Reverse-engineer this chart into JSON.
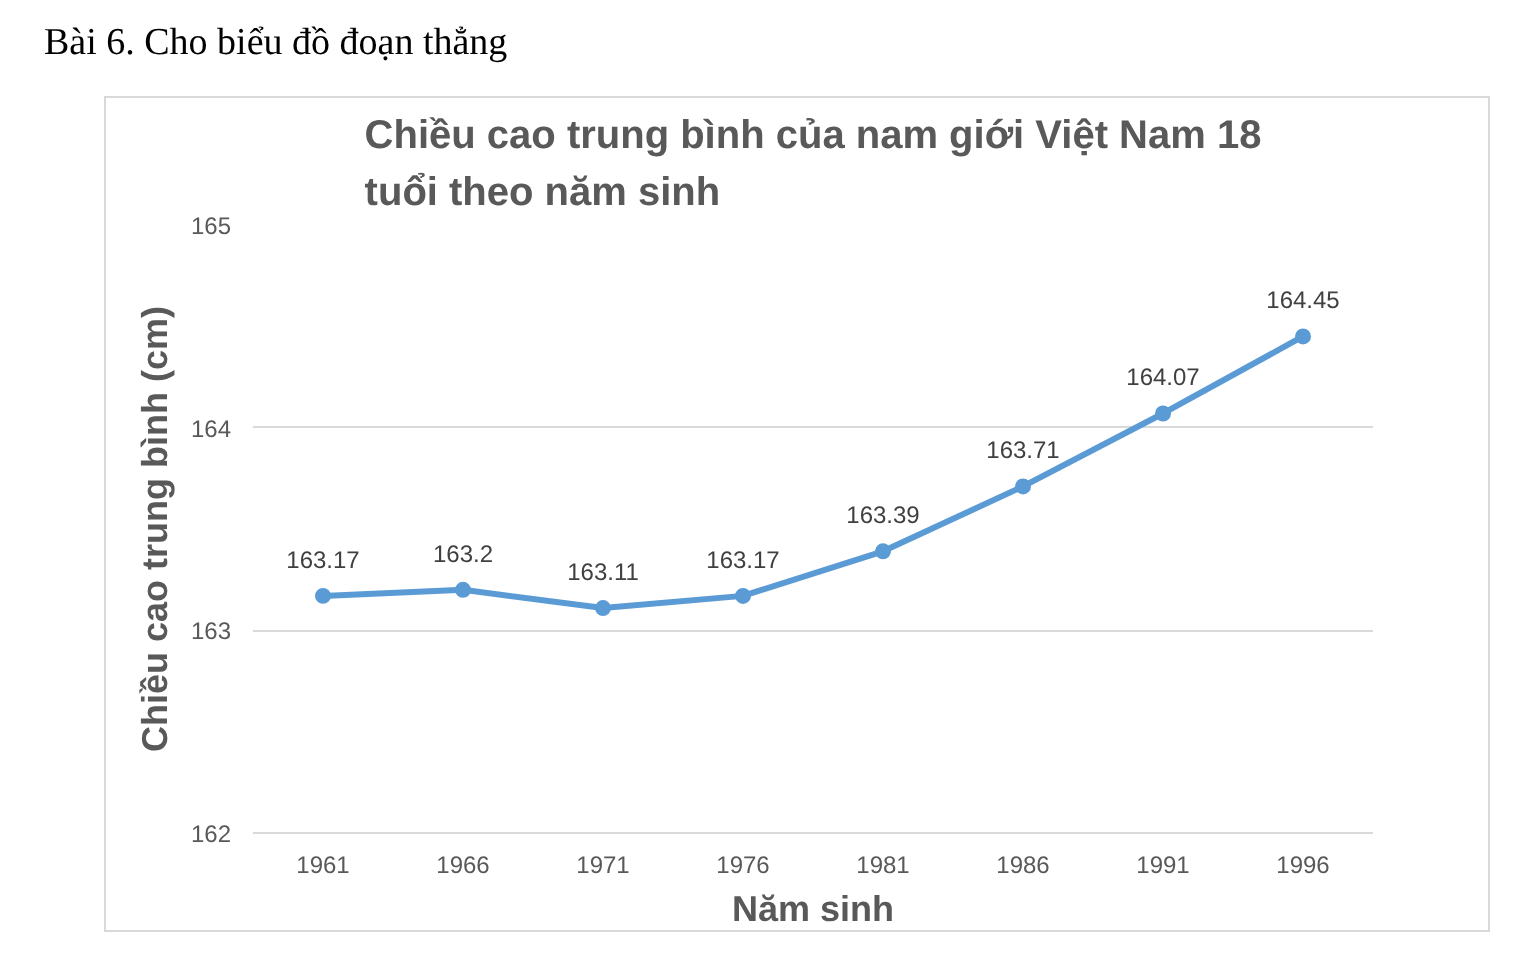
{
  "chart_data": {
    "type": "line",
    "title": "Chiều cao trung bình của nam giới Việt Nam 18 tuổi theo năm sinh",
    "xlabel": "Năm sinh",
    "ylabel": "Chiều cao trung bình (cm)",
    "annotations": [
      "Bài 6. Cho biểu đồ đoạn thẳng"
    ],
    "categories": [
      "1961",
      "1966",
      "1971",
      "1976",
      "1981",
      "1986",
      "1991",
      "1996"
    ],
    "series": [
      {
        "color": "#5b9bd5",
        "values": [
          163.17,
          163.2,
          163.11,
          163.17,
          163.39,
          163.71,
          164.07,
          164.45
        ]
      }
    ],
    "ylim": [
      162,
      165
    ],
    "yticks": [
      162,
      163,
      164,
      165
    ],
    "grid": "y",
    "marker": "circle",
    "line_style": "solid",
    "data_labels": true
  }
}
